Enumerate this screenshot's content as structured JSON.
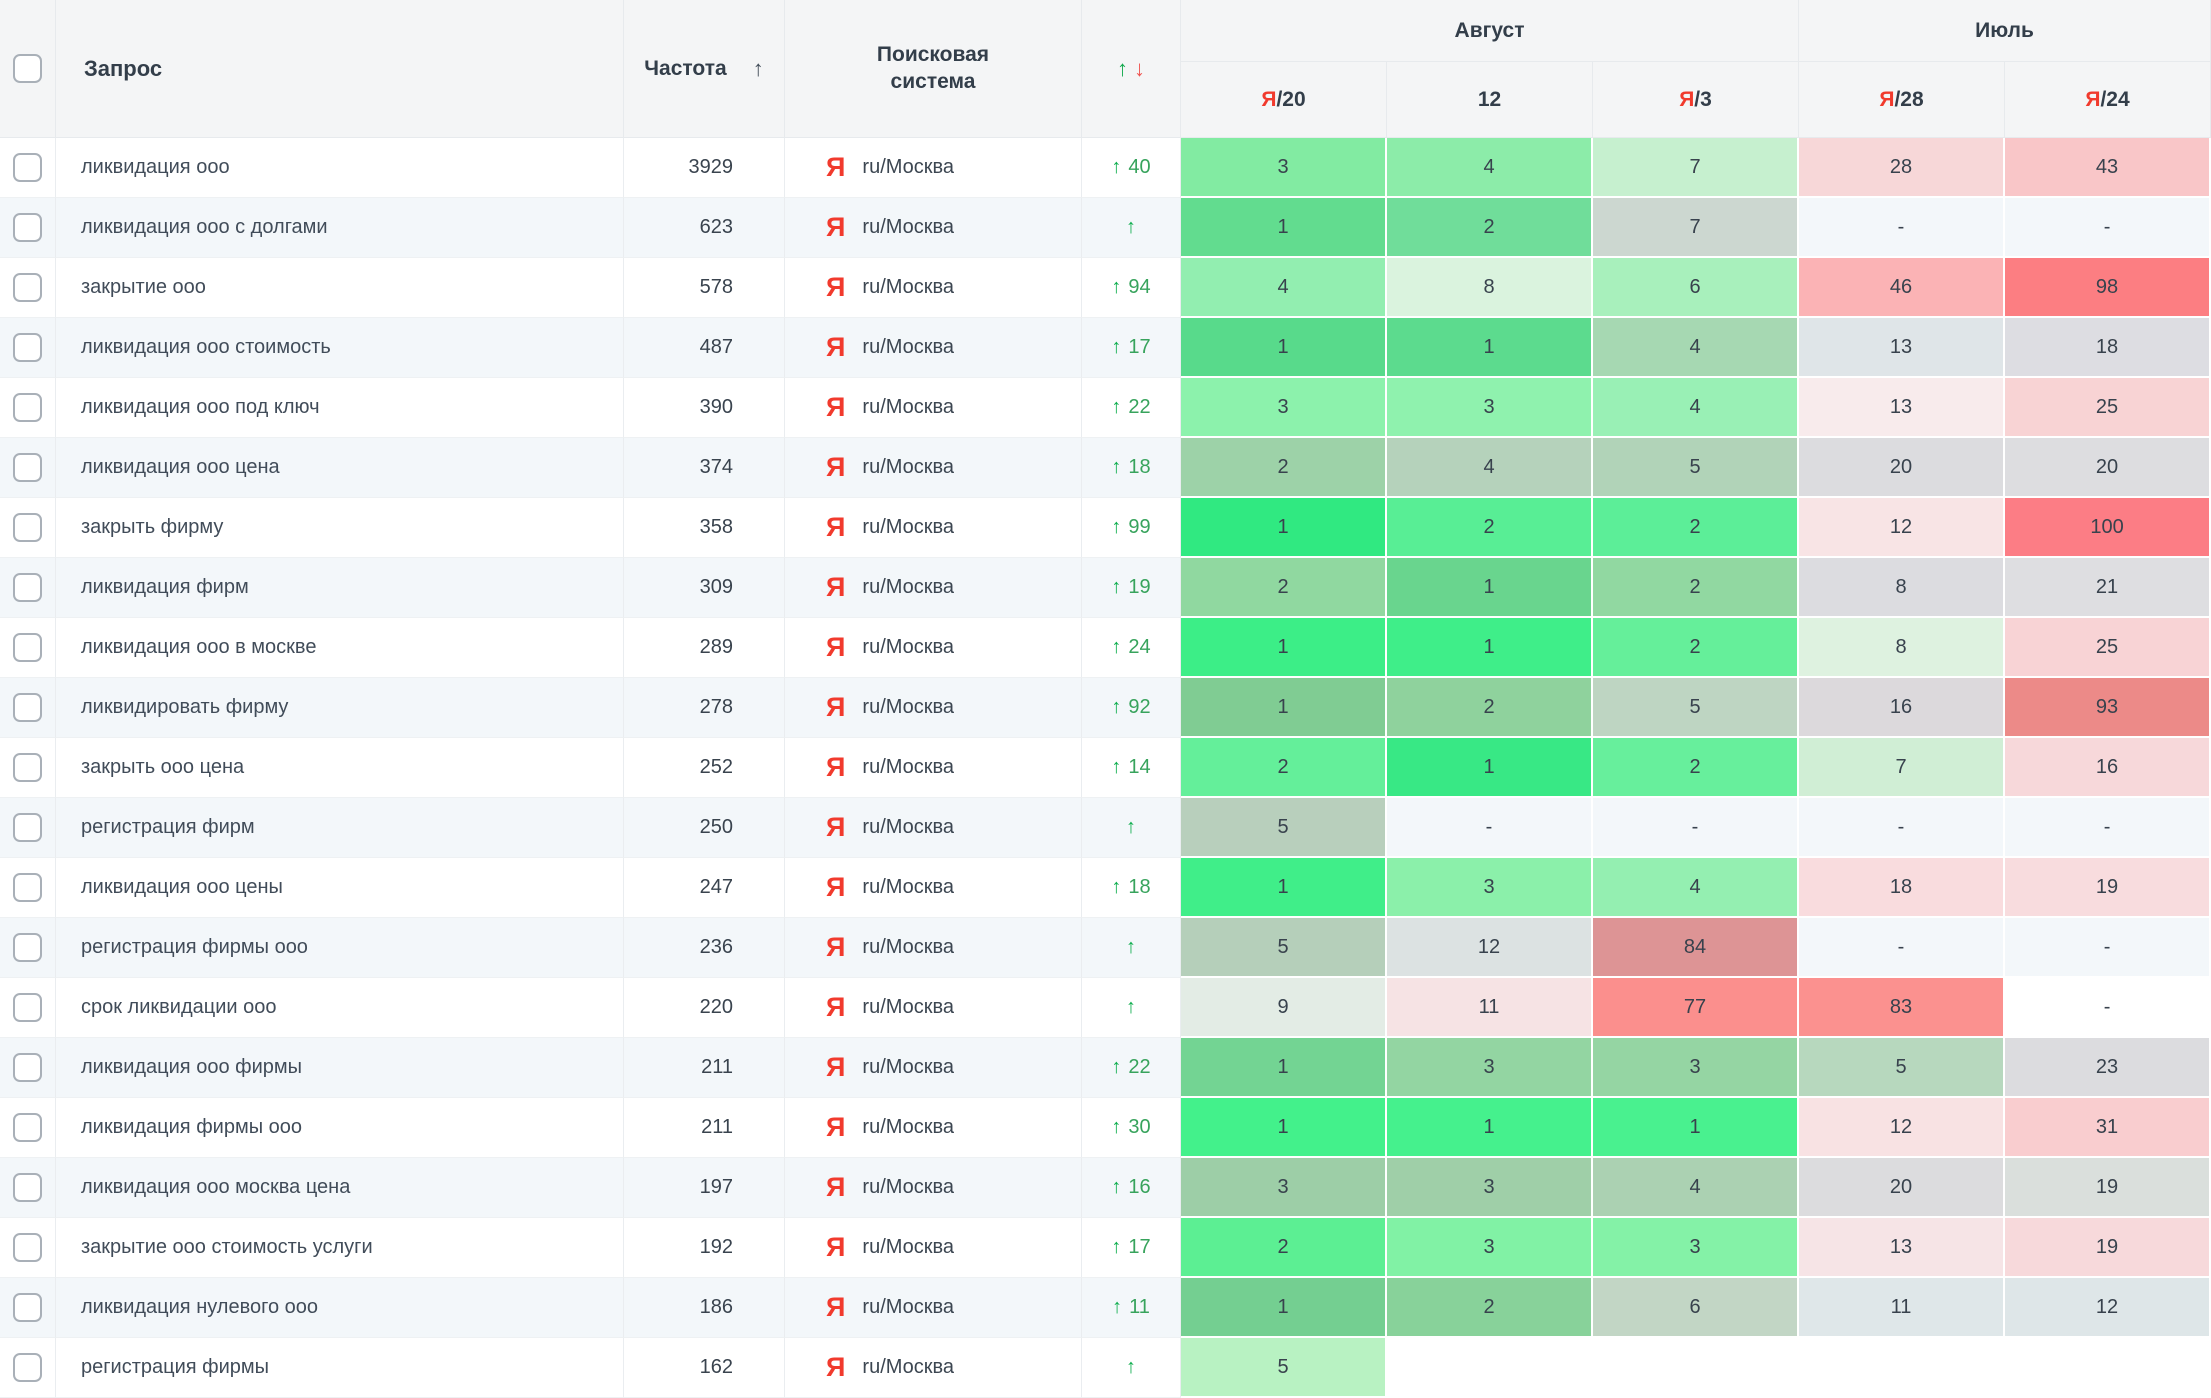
{
  "header": {
    "query_label": "Запрос",
    "frequency_label": "Частота",
    "frequency_sort_icon": "↑",
    "engine_label_line1": "Поисковая",
    "engine_label_line2": "система",
    "change_up_icon": "↑",
    "change_down_icon": "↓",
    "month_groups": [
      {
        "label": "Август",
        "columns": [
          {
            "prefix": "Я",
            "suffix": "/20"
          },
          {
            "prefix": "",
            "suffix": "12"
          },
          {
            "prefix": "Я",
            "suffix": "/3"
          }
        ]
      },
      {
        "label": "Июль",
        "columns": [
          {
            "prefix": "Я",
            "suffix": "/28"
          },
          {
            "prefix": "Я",
            "suffix": "/24"
          }
        ]
      }
    ]
  },
  "engine": {
    "icon": "Я",
    "region": "ru/Москва"
  },
  "colors": {
    "yandex_red": "#f13a2d",
    "change_arrow_green": "#0fae4e",
    "change_number_green": "#37a35c",
    "header_down_red": "#ef5350",
    "header_bg": "#f4f5f6",
    "row_alt_bg": "#f3f7fa",
    "text_dark": "#39434e"
  },
  "rows": [
    {
      "query": "ликвидация ооо",
      "frequency": "3929",
      "change": "40",
      "positions": [
        {
          "value": "3",
          "bg": "#82eba2"
        },
        {
          "value": "4",
          "bg": "#8ceca9"
        },
        {
          "value": "7",
          "bg": "#c6f0cf"
        },
        {
          "value": "28",
          "bg": "#f7d7d8"
        },
        {
          "value": "43",
          "bg": "#f9c6c8"
        }
      ]
    },
    {
      "query": "ликвидация ооо с долгами",
      "frequency": "623",
      "change": "",
      "positions": [
        {
          "value": "1",
          "bg": "#62dc8f"
        },
        {
          "value": "2",
          "bg": "#70dd9a"
        },
        {
          "value": "7",
          "bg": "#ccd7d0"
        },
        {
          "value": "-",
          "bg": ""
        },
        {
          "value": "-",
          "bg": ""
        }
      ]
    },
    {
      "query": "закрытие ооо",
      "frequency": "578",
      "change": "94",
      "positions": [
        {
          "value": "4",
          "bg": "#92eeb0"
        },
        {
          "value": "8",
          "bg": "#daf3de"
        },
        {
          "value": "6",
          "bg": "#a8f0bc"
        },
        {
          "value": "46",
          "bg": "#fbb3b5"
        },
        {
          "value": "98",
          "bg": "#fc7e82"
        }
      ]
    },
    {
      "query": "ликвидация ооо стоимость",
      "frequency": "487",
      "change": "17",
      "positions": [
        {
          "value": "1",
          "bg": "#58da8b"
        },
        {
          "value": "1",
          "bg": "#5cdb8e"
        },
        {
          "value": "4",
          "bg": "#a6d8b2"
        },
        {
          "value": "13",
          "bg": "#dfe5e8"
        },
        {
          "value": "18",
          "bg": "#dddde2"
        }
      ]
    },
    {
      "query": "ликвидация ооо под ключ",
      "frequency": "390",
      "change": "22",
      "positions": [
        {
          "value": "3",
          "bg": "#8cf2ac"
        },
        {
          "value": "3",
          "bg": "#8ff2ae"
        },
        {
          "value": "4",
          "bg": "#99f0b5"
        },
        {
          "value": "13",
          "bg": "#f8ebec"
        },
        {
          "value": "25",
          "bg": "#f8d3d4"
        }
      ]
    },
    {
      "query": "ликвидация ооо цена",
      "frequency": "374",
      "change": "18",
      "positions": [
        {
          "value": "2",
          "bg": "#9dd2a8"
        },
        {
          "value": "4",
          "bg": "#b5d2bb"
        },
        {
          "value": "5",
          "bg": "#b1d3b8"
        },
        {
          "value": "20",
          "bg": "#dcdcdf"
        },
        {
          "value": "20",
          "bg": "#dddde0"
        }
      ]
    },
    {
      "query": "закрыть фирму",
      "frequency": "358",
      "change": "99",
      "positions": [
        {
          "value": "1",
          "bg": "#30e981"
        },
        {
          "value": "2",
          "bg": "#58ee95"
        },
        {
          "value": "2",
          "bg": "#5cee98"
        },
        {
          "value": "12",
          "bg": "#f8e4e5"
        },
        {
          "value": "100",
          "bg": "#fc7d85"
        }
      ]
    },
    {
      "query": "ликвидация фирм",
      "frequency": "309",
      "change": "19",
      "positions": [
        {
          "value": "2",
          "bg": "#90d8a0"
        },
        {
          "value": "1",
          "bg": "#69d58e"
        },
        {
          "value": "2",
          "bg": "#91d8a1"
        },
        {
          "value": "8",
          "bg": "#dcdce0"
        },
        {
          "value": "21",
          "bg": "#dedee1"
        }
      ]
    },
    {
      "query": "ликвидация ооо в москве",
      "frequency": "289",
      "change": "24",
      "positions": [
        {
          "value": "1",
          "bg": "#3cee87"
        },
        {
          "value": "1",
          "bg": "#3fee89"
        },
        {
          "value": "2",
          "bg": "#65ef9a"
        },
        {
          "value": "8",
          "bg": "#def2e0"
        },
        {
          "value": "25",
          "bg": "#f8d3d5"
        }
      ]
    },
    {
      "query": "ликвидировать фирму",
      "frequency": "278",
      "change": "92",
      "positions": [
        {
          "value": "1",
          "bg": "#80cc93"
        },
        {
          "value": "2",
          "bg": "#8fd29d"
        },
        {
          "value": "5",
          "bg": "#bed5c2"
        },
        {
          "value": "16",
          "bg": "#dcd9dc"
        },
        {
          "value": "93",
          "bg": "#ec8a88"
        }
      ]
    },
    {
      "query": "закрыть ооо цена",
      "frequency": "252",
      "change": "14",
      "positions": [
        {
          "value": "2",
          "bg": "#64ef9a"
        },
        {
          "value": "1",
          "bg": "#38e885"
        },
        {
          "value": "2",
          "bg": "#67ef9c"
        },
        {
          "value": "7",
          "bg": "#d0eed5"
        },
        {
          "value": "16",
          "bg": "#f7d8da"
        }
      ]
    },
    {
      "query": "регистрация фирм",
      "frequency": "250",
      "change": "",
      "positions": [
        {
          "value": "5",
          "bg": "#b8cfbc"
        },
        {
          "value": "-",
          "bg": ""
        },
        {
          "value": "-",
          "bg": ""
        },
        {
          "value": "-",
          "bg": ""
        },
        {
          "value": "-",
          "bg": ""
        }
      ]
    },
    {
      "query": "ликвидация ооо цены",
      "frequency": "247",
      "change": "18",
      "positions": [
        {
          "value": "1",
          "bg": "#40ee89"
        },
        {
          "value": "3",
          "bg": "#8bf0aa"
        },
        {
          "value": "4",
          "bg": "#94efb1"
        },
        {
          "value": "18",
          "bg": "#f9dcde"
        },
        {
          "value": "19",
          "bg": "#f8dcde"
        }
      ]
    },
    {
      "query": "регистрация фирмы ооо",
      "frequency": "236",
      "change": "",
      "positions": [
        {
          "value": "5",
          "bg": "#b5cfba"
        },
        {
          "value": "12",
          "bg": "#dce2e2"
        },
        {
          "value": "84",
          "bg": "#dd9495"
        },
        {
          "value": "-",
          "bg": ""
        },
        {
          "value": "-",
          "bg": ""
        }
      ]
    },
    {
      "query": "срок ликвидации ооо",
      "frequency": "220",
      "change": "",
      "positions": [
        {
          "value": "9",
          "bg": "#e3ece5"
        },
        {
          "value": "11",
          "bg": "#f6e3e4"
        },
        {
          "value": "77",
          "bg": "#fb8f8d"
        },
        {
          "value": "83",
          "bg": "#fb918f"
        },
        {
          "value": "-",
          "bg": ""
        }
      ]
    },
    {
      "query": "ликвидация ооо фирмы",
      "frequency": "211",
      "change": "22",
      "positions": [
        {
          "value": "1",
          "bg": "#73d493"
        },
        {
          "value": "3",
          "bg": "#93d5a2"
        },
        {
          "value": "3",
          "bg": "#95d5a3"
        },
        {
          "value": "5",
          "bg": "#b7d8be"
        },
        {
          "value": "23",
          "bg": "#dcdcdf"
        }
      ]
    },
    {
      "query": "ликвидация фирмы ооо",
      "frequency": "211",
      "change": "30",
      "positions": [
        {
          "value": "1",
          "bg": "#43f18b"
        },
        {
          "value": "1",
          "bg": "#45f18d"
        },
        {
          "value": "1",
          "bg": "#49f18f"
        },
        {
          "value": "12",
          "bg": "#f8e2e3"
        },
        {
          "value": "31",
          "bg": "#f9cdcf"
        }
      ]
    },
    {
      "query": "ликвидация ооо москва цена",
      "frequency": "197",
      "change": "16",
      "positions": [
        {
          "value": "3",
          "bg": "#9dcea7"
        },
        {
          "value": "3",
          "bg": "#9fcfa8"
        },
        {
          "value": "4",
          "bg": "#abd1b2"
        },
        {
          "value": "20",
          "bg": "#dcdcde"
        },
        {
          "value": "19",
          "bg": "#dadfdc"
        }
      ]
    },
    {
      "query": "закрытие ооо стоимость услуги",
      "frequency": "192",
      "change": "17",
      "positions": [
        {
          "value": "2",
          "bg": "#5cef93"
        },
        {
          "value": "3",
          "bg": "#81f2a5"
        },
        {
          "value": "3",
          "bg": "#84f2a7"
        },
        {
          "value": "13",
          "bg": "#f6e4e6"
        },
        {
          "value": "19",
          "bg": "#f7d9db"
        }
      ]
    },
    {
      "query": "ликвидация нулевого ооо",
      "frequency": "186",
      "change": "11",
      "positions": [
        {
          "value": "1",
          "bg": "#74cf91"
        },
        {
          "value": "2",
          "bg": "#88d29a"
        },
        {
          "value": "6",
          "bg": "#c2d6c5"
        },
        {
          "value": "11",
          "bg": "#dfe7e9"
        },
        {
          "value": "12",
          "bg": "#dee6e8"
        }
      ]
    },
    {
      "query": "регистрация фирмы",
      "frequency": "162",
      "change": "",
      "positions": [
        {
          "value": "5",
          "bg": "#b8f2c2"
        },
        {
          "value": "",
          "bg": ""
        },
        {
          "value": "",
          "bg": ""
        },
        {
          "value": "",
          "bg": ""
        },
        {
          "value": "",
          "bg": ""
        }
      ]
    }
  ]
}
